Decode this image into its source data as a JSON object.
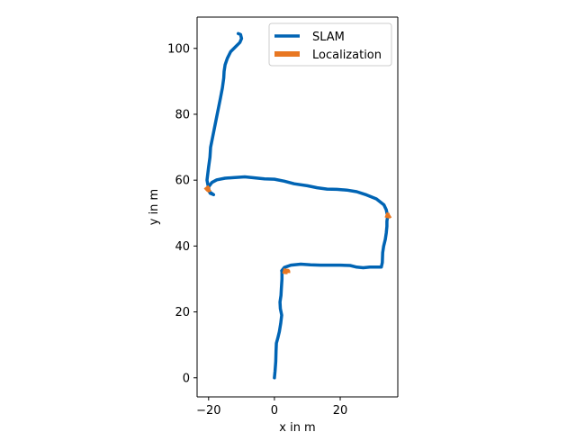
{
  "chart_data": {
    "type": "line",
    "xlabel": "x in m",
    "ylabel": "y in m",
    "xlim": [
      -23.5,
      37.5
    ],
    "ylim": [
      -5.8,
      109.5
    ],
    "xticks": [
      -20,
      0,
      20
    ],
    "yticks": [
      0,
      20,
      40,
      60,
      80,
      100
    ],
    "grid": false,
    "legend_position": "top-right",
    "series": [
      {
        "name": "SLAM",
        "color": "#0064b4",
        "points": [
          [
            0,
            0
          ],
          [
            0.2,
            2
          ],
          [
            0.4,
            5
          ],
          [
            0.5,
            8
          ],
          [
            0.6,
            10.5
          ],
          [
            1.0,
            12
          ],
          [
            1.5,
            14
          ],
          [
            1.9,
            16.5
          ],
          [
            2.2,
            19
          ],
          [
            1.8,
            21
          ],
          [
            1.7,
            23
          ],
          [
            2.0,
            25
          ],
          [
            2.1,
            27
          ],
          [
            2.3,
            30
          ],
          [
            2.3,
            32.2
          ],
          [
            2.2,
            32.5
          ],
          [
            3.0,
            33.5
          ],
          [
            5.0,
            34.2
          ],
          [
            8.0,
            34.5
          ],
          [
            11.0,
            34.3
          ],
          [
            14.0,
            34.2
          ],
          [
            17.0,
            34.2
          ],
          [
            20.0,
            34.2
          ],
          [
            23.0,
            34.1
          ],
          [
            25.0,
            33.6
          ],
          [
            27.0,
            33.4
          ],
          [
            29.0,
            33.6
          ],
          [
            31.0,
            33.6
          ],
          [
            32.5,
            33.6
          ],
          [
            32.8,
            35
          ],
          [
            32.9,
            38
          ],
          [
            33.2,
            40
          ],
          [
            33.7,
            42
          ],
          [
            34.0,
            44
          ],
          [
            34.2,
            46
          ],
          [
            34.2,
            47.5
          ],
          [
            34.4,
            49
          ],
          [
            34.0,
            51
          ],
          [
            33.3,
            52.5
          ],
          [
            31.0,
            54.3
          ],
          [
            28.0,
            55.5
          ],
          [
            25.0,
            56.5
          ],
          [
            22.0,
            57
          ],
          [
            19.0,
            57.2
          ],
          [
            16.0,
            57.3
          ],
          [
            13.0,
            57.7
          ],
          [
            10.0,
            58.3
          ],
          [
            6.0,
            58.9
          ],
          [
            3.0,
            59.7
          ],
          [
            0.0,
            60.3
          ],
          [
            -3.0,
            60.4
          ],
          [
            -6.0,
            60.7
          ],
          [
            -9.0,
            61
          ],
          [
            -12.0,
            60.8
          ],
          [
            -15.0,
            60.6
          ],
          [
            -17.5,
            60.1
          ],
          [
            -19.0,
            59.3
          ],
          [
            -20.0,
            58
          ],
          [
            -20.0,
            57
          ],
          [
            -19.5,
            56
          ],
          [
            -18.5,
            55.6
          ],
          [
            -19.8,
            56.5
          ],
          [
            -20.5,
            60
          ],
          [
            -20.0,
            64
          ],
          [
            -19.6,
            67
          ],
          [
            -19.4,
            70
          ],
          [
            -18.8,
            73
          ],
          [
            -18.2,
            76
          ],
          [
            -17.6,
            79
          ],
          [
            -17.0,
            82
          ],
          [
            -16.4,
            85
          ],
          [
            -15.8,
            88
          ],
          [
            -15.4,
            91
          ],
          [
            -15.3,
            93
          ],
          [
            -15.0,
            95
          ],
          [
            -14.3,
            97
          ],
          [
            -13.3,
            99
          ],
          [
            -11.8,
            100.5
          ],
          [
            -10.5,
            101.8
          ],
          [
            -10.0,
            103
          ],
          [
            -10.3,
            104.2
          ],
          [
            -11.0,
            104.5
          ]
        ]
      },
      {
        "name": "Localization",
        "color": "#e87722",
        "segments": [
          [
            [
              2.6,
              32.5
            ],
            [
              3.3,
              32.3
            ],
            [
              4.0,
              32.3
            ],
            [
              4.0,
              31.8
            ]
          ],
          [
            [
              33.8,
              49.5
            ],
            [
              34.3,
              49.3
            ],
            [
              34.9,
              49.2
            ],
            [
              35.2,
              49.4
            ]
          ],
          [
            [
              -20.8,
              58.0
            ],
            [
              -20.4,
              57.5
            ],
            [
              -20.0,
              57.1
            ],
            [
              -19.7,
              57.4
            ]
          ]
        ]
      }
    ]
  }
}
